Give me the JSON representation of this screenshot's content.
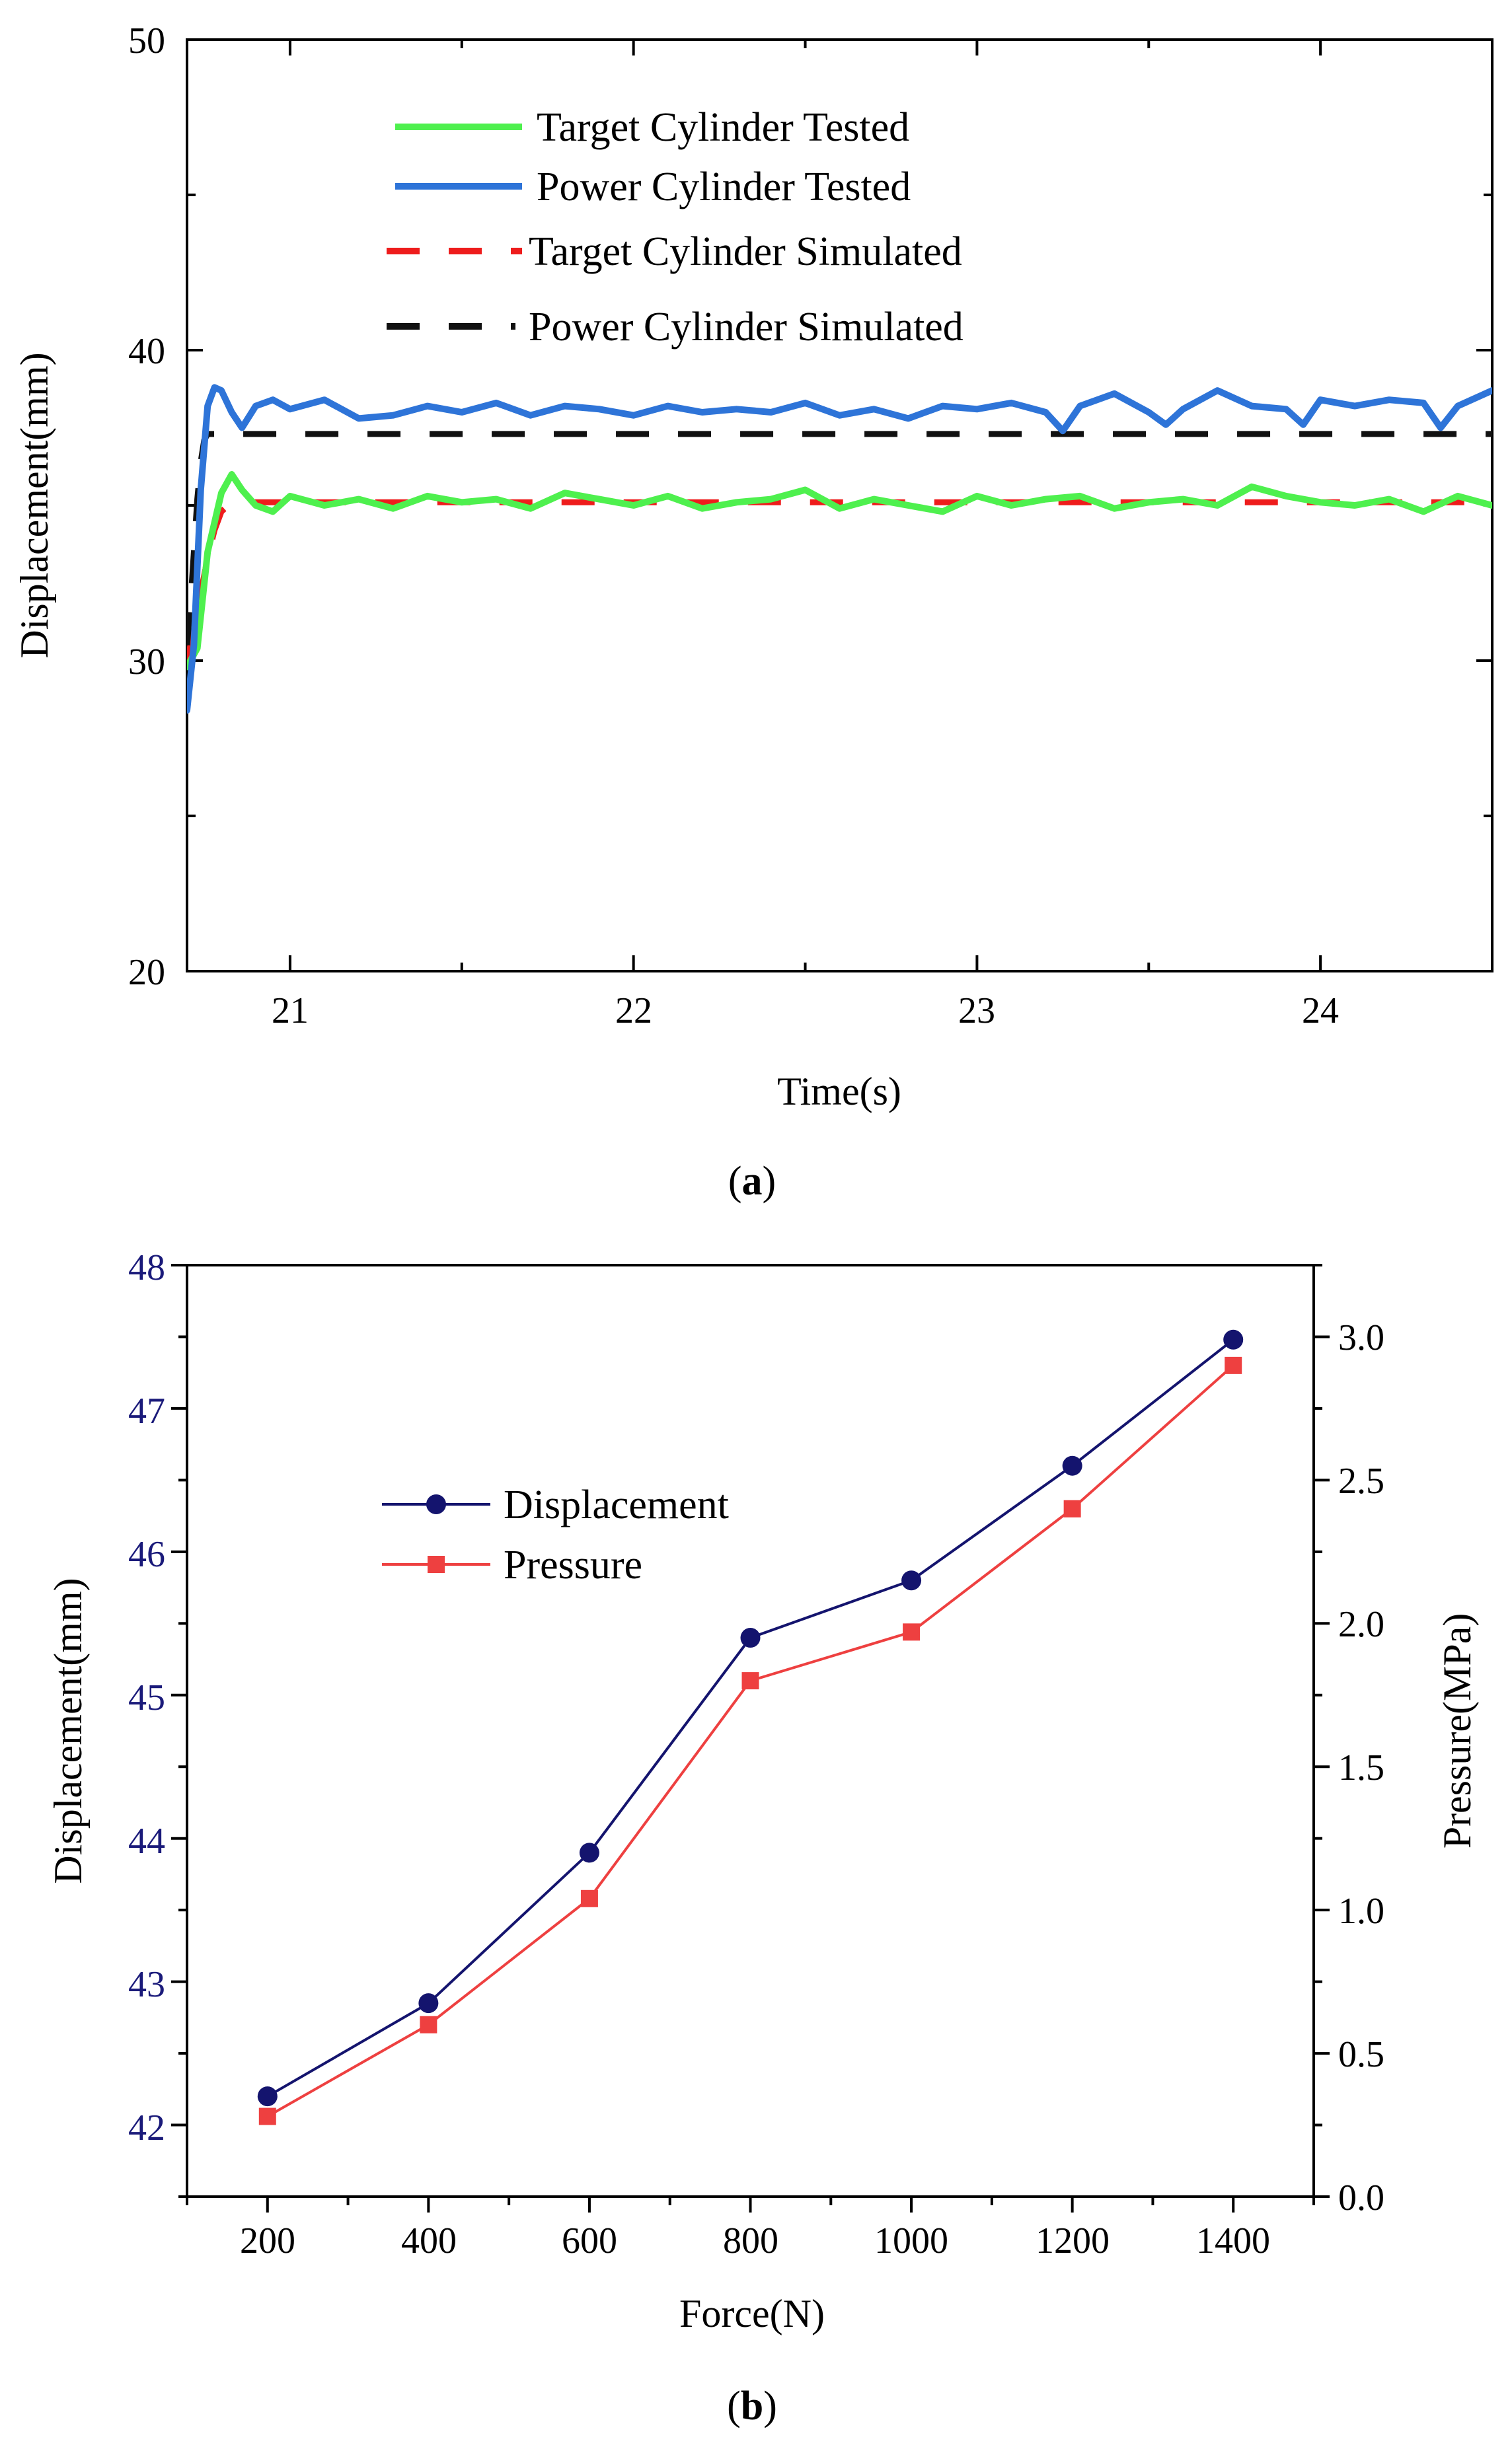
{
  "chart_data": [
    {
      "id": "a",
      "type": "line",
      "caption_open": "(",
      "caption_letter": "a",
      "caption_close": ")",
      "xlabel": "Time(s)",
      "ylabel": "Displacement(mm)",
      "xlim": [
        20.7,
        24.5
      ],
      "ylim": [
        20,
        50
      ],
      "xticks": [
        21,
        22,
        23,
        24
      ],
      "yticks": [
        20,
        30,
        40,
        50
      ],
      "tick_labels_x": [
        "21",
        "22",
        "23",
        "24"
      ],
      "tick_labels_y": [
        "20",
        "30",
        "40",
        "50"
      ],
      "legend_position": "top-left",
      "series": [
        {
          "name": "Target Cylinder Tested",
          "color": "#4ef04e",
          "style": "solid",
          "x": [
            20.7,
            20.73,
            20.76,
            20.8,
            20.83,
            20.86,
            20.9,
            20.95,
            21.0,
            21.1,
            21.2,
            21.3,
            21.4,
            21.5,
            21.6,
            21.7,
            21.8,
            21.9,
            22.0,
            22.1,
            22.2,
            22.3,
            22.4,
            22.5,
            22.6,
            22.7,
            22.8,
            22.9,
            23.0,
            23.1,
            23.2,
            23.3,
            23.4,
            23.5,
            23.6,
            23.7,
            23.8,
            23.9,
            24.0,
            24.1,
            24.2,
            24.3,
            24.4,
            24.5
          ],
          "y": [
            29.8,
            30.4,
            33.5,
            35.4,
            36.0,
            35.5,
            35.0,
            34.8,
            35.3,
            35.0,
            35.2,
            34.9,
            35.3,
            35.1,
            35.2,
            34.9,
            35.4,
            35.2,
            35.0,
            35.3,
            34.9,
            35.1,
            35.2,
            35.5,
            34.9,
            35.2,
            35.0,
            34.8,
            35.3,
            35.0,
            35.2,
            35.3,
            34.9,
            35.1,
            35.2,
            35.0,
            35.6,
            35.3,
            35.1,
            35.0,
            35.2,
            34.8,
            35.3,
            35.0
          ]
        },
        {
          "name": "Power Cylinder Tested",
          "color": "#2e74d8",
          "style": "solid",
          "x": [
            20.7,
            20.72,
            20.74,
            20.76,
            20.78,
            20.8,
            20.83,
            20.86,
            20.9,
            20.95,
            21.0,
            21.1,
            21.2,
            21.3,
            21.4,
            21.5,
            21.6,
            21.7,
            21.8,
            21.9,
            22.0,
            22.1,
            22.2,
            22.3,
            22.4,
            22.5,
            22.6,
            22.7,
            22.8,
            22.9,
            23.0,
            23.1,
            23.2,
            23.25,
            23.3,
            23.4,
            23.5,
            23.55,
            23.6,
            23.7,
            23.8,
            23.9,
            23.95,
            24.0,
            24.1,
            24.2,
            24.3,
            24.35,
            24.4,
            24.5
          ],
          "y": [
            28.4,
            30.5,
            35.5,
            38.2,
            38.8,
            38.7,
            38.0,
            37.5,
            38.2,
            38.4,
            38.1,
            38.4,
            37.8,
            37.9,
            38.2,
            38.0,
            38.3,
            37.9,
            38.2,
            38.1,
            37.9,
            38.2,
            38.0,
            38.1,
            38.0,
            38.3,
            37.9,
            38.1,
            37.8,
            38.2,
            38.1,
            38.3,
            38.0,
            37.4,
            38.2,
            38.6,
            38.0,
            37.6,
            38.1,
            38.7,
            38.2,
            38.1,
            37.6,
            38.4,
            38.2,
            38.4,
            38.3,
            37.5,
            38.2,
            38.7
          ]
        },
        {
          "name": "Target Cylinder Simulated",
          "color": "#ee1c1c",
          "style": "dashed",
          "x": [
            20.7,
            20.72,
            20.74,
            20.76,
            20.78,
            20.8,
            20.83,
            20.86,
            21.0,
            22.0,
            23.0,
            24.0,
            24.5
          ],
          "y": [
            30.0,
            31.0,
            32.2,
            33.3,
            34.2,
            34.8,
            35.1,
            35.1,
            35.1,
            35.1,
            35.1,
            35.1,
            35.1
          ]
        },
        {
          "name": "Power Cylinder Simulated",
          "color": "#111111",
          "style": "dashed",
          "x": [
            20.7,
            20.71,
            20.72,
            20.73,
            20.74,
            20.75,
            20.76,
            20.78,
            21.0,
            22.0,
            23.0,
            24.0,
            24.5
          ],
          "y": [
            30.5,
            31.8,
            33.5,
            35.2,
            36.4,
            37.1,
            37.3,
            37.3,
            37.3,
            37.3,
            37.3,
            37.3,
            37.3
          ]
        }
      ]
    },
    {
      "id": "b",
      "type": "line",
      "caption_open": "(",
      "caption_letter": "b",
      "caption_close": ")",
      "xlabel": "Force(N)",
      "ylabel": "Displacement(mm)",
      "ylabel_right": "Pressure(MPa)",
      "xlim": [
        100,
        1500
      ],
      "ylim": [
        41.5,
        48
      ],
      "ylim_right": [
        0.0,
        3.25
      ],
      "xticks": [
        200,
        400,
        600,
        800,
        1000,
        1200,
        1400
      ],
      "yticks": [
        42,
        43,
        44,
        45,
        46,
        47,
        48
      ],
      "yticks_right": [
        0.0,
        0.5,
        1.0,
        1.5,
        2.0,
        2.5,
        3.0
      ],
      "tick_labels_x": [
        "200",
        "400",
        "600",
        "800",
        "1000",
        "1200",
        "1400"
      ],
      "tick_labels_y": [
        "42",
        "43",
        "44",
        "45",
        "46",
        "47",
        "48"
      ],
      "tick_labels_y_right": [
        "0.0",
        "0.5",
        "1.0",
        "1.5",
        "2.0",
        "2.5",
        "3.0"
      ],
      "left_axis_color": "#1a1a7a",
      "legend_position": "upper-left",
      "series": [
        {
          "name": "Displacement",
          "axis": "left",
          "color": "#14146e",
          "marker": "circle",
          "x": [
            200,
            400,
            600,
            800,
            1000,
            1200,
            1400
          ],
          "y": [
            42.2,
            42.85,
            43.9,
            45.4,
            45.8,
            46.6,
            47.48
          ]
        },
        {
          "name": "Pressure",
          "axis": "right",
          "color": "#ee4040",
          "marker": "square",
          "x": [
            200,
            400,
            600,
            800,
            1000,
            1200,
            1400
          ],
          "y": [
            0.28,
            0.6,
            1.04,
            1.8,
            1.97,
            2.4,
            2.9
          ]
        }
      ]
    }
  ]
}
